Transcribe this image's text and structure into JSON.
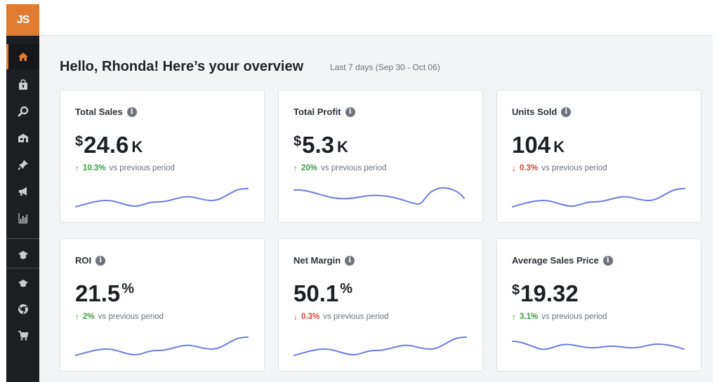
{
  "app": {
    "logo_text": "JS",
    "accent_color": "#e07b30",
    "sidebar_color": "#1c1e21",
    "sparkline_color": "#6c7ce8"
  },
  "sidebar": {
    "items": [
      {
        "name": "home-icon",
        "active": true
      },
      {
        "name": "shopping-bag-icon",
        "active": false
      },
      {
        "name": "search-icon",
        "active": false
      },
      {
        "name": "warehouse-icon",
        "active": false
      },
      {
        "name": "pin-icon",
        "active": false
      },
      {
        "name": "megaphone-icon",
        "active": false
      },
      {
        "name": "bar-chart-icon",
        "active": false
      },
      {
        "name": "graduation-cap-icon",
        "active": false
      },
      {
        "name": "academy-icon",
        "active": false
      },
      {
        "name": "chrome-icon",
        "active": false
      },
      {
        "name": "cart-icon",
        "active": false
      }
    ]
  },
  "header": {
    "greeting": "Hello, Rhonda! Here’s your overview",
    "date_range": "Last 7 days (Sep 30 - Oct 06)"
  },
  "cards": [
    {
      "title": "Total Sales",
      "prefix": "$",
      "value": "24.6",
      "suffix": "K",
      "direction": "up",
      "arrow": "↑",
      "delta": "10.3%",
      "note": "vs previous period"
    },
    {
      "title": "Total Profit",
      "prefix": "$",
      "value": "5.3",
      "suffix": "K",
      "direction": "up",
      "arrow": "↑",
      "delta": "20%",
      "note": "vs previous period"
    },
    {
      "title": "Units Sold",
      "prefix": "",
      "value": "104",
      "suffix": "K",
      "direction": "down",
      "arrow": "↓",
      "delta": "0.3%",
      "note": "vs previous period"
    },
    {
      "title": "ROI",
      "prefix": "",
      "value": "21.5",
      "suffix": "%",
      "direction": "up",
      "arrow": "↑",
      "delta": "2%",
      "note": "vs previous period"
    },
    {
      "title": "Net Margin",
      "prefix": "",
      "value": "50.1",
      "suffix": "%",
      "direction": "down",
      "arrow": "↓",
      "delta": "0.3%",
      "note": "vs previous period"
    },
    {
      "title": "Average Sales Price",
      "prefix": "$",
      "value": "19.32",
      "suffix": "",
      "direction": "up",
      "arrow": "↑",
      "delta": "3.1%",
      "note": "vs previous period"
    }
  ]
}
